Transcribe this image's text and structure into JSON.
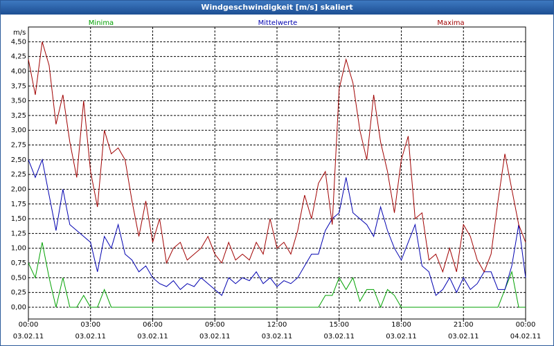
{
  "chart_data": {
    "type": "line",
    "title": "Windgeschwindigkeit [m/s] skaliert",
    "y_label": "m/s",
    "x": [
      0,
      20,
      40,
      60,
      80,
      100,
      120,
      140,
      160,
      180,
      200,
      220,
      240,
      260,
      280,
      300,
      320,
      340,
      360,
      380,
      400,
      420,
      440,
      460,
      480,
      500,
      520,
      540,
      560,
      580,
      600,
      620,
      640,
      660,
      680,
      700,
      720,
      740,
      760,
      780,
      800,
      820,
      840,
      860,
      880,
      900,
      920,
      940,
      960,
      980,
      1000,
      1020,
      1040,
      1060,
      1080,
      1100,
      1120,
      1140,
      1160,
      1180,
      1200,
      1220,
      1240,
      1260,
      1280,
      1300,
      1320,
      1340,
      1360,
      1380,
      1400,
      1420,
      1440
    ],
    "series": [
      {
        "name": "Minima",
        "color": "#00a000",
        "values": [
          0.75,
          0.5,
          1.1,
          0.5,
          0,
          0.5,
          0,
          0,
          0.2,
          0,
          0,
          0.3,
          0,
          0,
          0,
          0,
          0,
          0,
          0,
          0,
          0,
          0,
          0,
          0,
          0,
          0,
          0,
          0,
          0,
          0,
          0,
          0,
          0,
          0,
          0,
          0,
          0,
          0,
          0,
          0,
          0,
          0,
          0,
          0.2,
          0.2,
          0.5,
          0.3,
          0.5,
          0.1,
          0.3,
          0.3,
          0,
          0.3,
          0.2,
          0,
          0,
          0,
          0,
          0,
          0,
          0,
          0,
          0,
          0,
          0,
          0,
          0,
          0,
          0,
          0.3,
          0.6,
          0,
          0
        ]
      },
      {
        "name": "Mittelwerte",
        "color": "#0000b0",
        "values": [
          2.5,
          2.2,
          2.5,
          1.9,
          1.3,
          2.0,
          1.4,
          1.3,
          1.2,
          1.1,
          0.6,
          1.2,
          1.0,
          1.4,
          0.9,
          0.8,
          0.6,
          0.7,
          0.5,
          0.4,
          0.35,
          0.45,
          0.3,
          0.4,
          0.35,
          0.5,
          0.4,
          0.3,
          0.2,
          0.5,
          0.4,
          0.5,
          0.45,
          0.6,
          0.4,
          0.5,
          0.35,
          0.45,
          0.4,
          0.5,
          0.7,
          0.9,
          0.9,
          1.3,
          1.5,
          1.6,
          2.2,
          1.6,
          1.5,
          1.4,
          1.2,
          1.7,
          1.3,
          1.0,
          0.8,
          1.1,
          1.4,
          0.7,
          0.6,
          0.2,
          0.3,
          0.5,
          0.25,
          0.5,
          0.3,
          0.4,
          0.6,
          0.6,
          0.3,
          0.3,
          0.7,
          1.4,
          0.5
        ]
      },
      {
        "name": "Maxima",
        "color": "#a00000",
        "values": [
          4.2,
          3.6,
          4.5,
          4.1,
          3.1,
          3.6,
          2.8,
          2.2,
          3.5,
          2.3,
          1.7,
          3.0,
          2.6,
          2.7,
          2.5,
          1.8,
          1.2,
          1.8,
          1.1,
          1.5,
          0.75,
          1.0,
          1.1,
          0.8,
          0.9,
          1.0,
          1.2,
          0.9,
          0.75,
          1.1,
          0.8,
          0.9,
          0.8,
          1.1,
          0.9,
          1.5,
          1.0,
          1.1,
          0.9,
          1.3,
          1.9,
          1.5,
          2.1,
          2.3,
          1.4,
          3.7,
          4.2,
          3.8,
          3.0,
          2.5,
          3.6,
          2.8,
          2.3,
          1.6,
          2.5,
          2.9,
          1.5,
          1.6,
          0.8,
          0.9,
          0.6,
          1.0,
          0.6,
          1.4,
          1.2,
          0.8,
          0.6,
          0.9,
          1.8,
          2.6,
          2.0,
          1.4,
          1.1
        ]
      }
    ],
    "xlim": [
      0,
      1440
    ],
    "xticks": [
      {
        "value": 0,
        "label": "00:00\n03.02.11"
      },
      {
        "value": 180,
        "label": "03:00\n03.02.11"
      },
      {
        "value": 360,
        "label": "06:00\n03.02.11"
      },
      {
        "value": 540,
        "label": "09:00\n03.02.11"
      },
      {
        "value": 720,
        "label": "12:00\n03.02.11"
      },
      {
        "value": 900,
        "label": "15:00\n03.02.11"
      },
      {
        "value": 1080,
        "label": "18:00\n03.02.11"
      },
      {
        "value": 1260,
        "label": "21:00\n03.02.11"
      },
      {
        "value": 1440,
        "label": "00:00\n04.02.11"
      }
    ],
    "ylim": [
      -0.2,
      4.75
    ],
    "yticks": [
      {
        "value": 0,
        "label": "0,00"
      },
      {
        "value": 0.25,
        "label": "0,25"
      },
      {
        "value": 0.5,
        "label": "0,50"
      },
      {
        "value": 0.75,
        "label": "0,75"
      },
      {
        "value": 1,
        "label": "1,00"
      },
      {
        "value": 1.25,
        "label": "1,25"
      },
      {
        "value": 1.5,
        "label": "1,50"
      },
      {
        "value": 1.75,
        "label": "1,75"
      },
      {
        "value": 2,
        "label": "2,00"
      },
      {
        "value": 2.25,
        "label": "2,25"
      },
      {
        "value": 2.5,
        "label": "2,50"
      },
      {
        "value": 2.75,
        "label": "2,75"
      },
      {
        "value": 3,
        "label": "3,00"
      },
      {
        "value": 3.25,
        "label": "3,25"
      },
      {
        "value": 3.5,
        "label": "3,50"
      },
      {
        "value": 3.75,
        "label": "3,75"
      },
      {
        "value": 4,
        "label": "4,00"
      },
      {
        "value": 4.25,
        "label": "4,25"
      },
      {
        "value": 4.5,
        "label": "4,50"
      }
    ],
    "grid": true
  }
}
